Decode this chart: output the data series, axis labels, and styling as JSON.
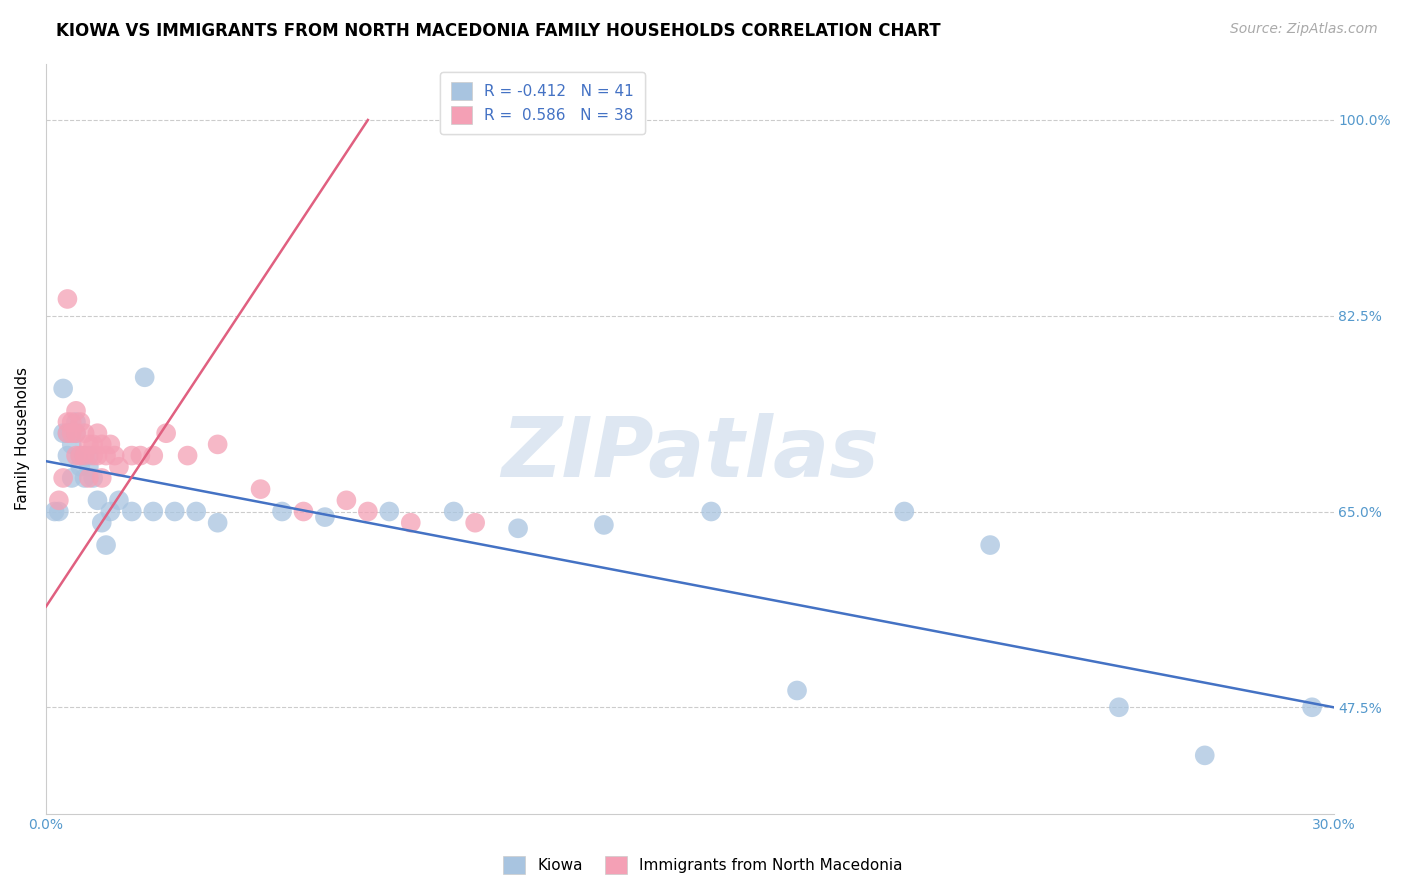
{
  "title": "KIOWA VS IMMIGRANTS FROM NORTH MACEDONIA FAMILY HOUSEHOLDS CORRELATION CHART",
  "source": "Source: ZipAtlas.com",
  "ylabel": "Family Households",
  "xlim": [
    0.0,
    0.3
  ],
  "ylim": [
    0.38,
    1.05
  ],
  "xtick_positions": [
    0.0,
    0.05,
    0.1,
    0.15,
    0.2,
    0.25,
    0.3
  ],
  "xticklabels": [
    "0.0%",
    "",
    "",
    "",
    "",
    "",
    "30.0%"
  ],
  "ytick_positions": [
    0.475,
    0.65,
    0.825,
    1.0
  ],
  "ytick_labels": [
    "47.5%",
    "65.0%",
    "82.5%",
    "100.0%"
  ],
  "blue_R": "-0.412",
  "blue_N": 41,
  "pink_R": "0.586",
  "pink_N": 38,
  "blue_color": "#a8c4e0",
  "pink_color": "#f4a0b5",
  "blue_line_color": "#4472c4",
  "pink_line_color": "#e06080",
  "watermark_text": "ZIPatlas",
  "legend_label_blue": "Kiowa",
  "legend_label_pink": "Immigrants from North Macedonia",
  "blue_scatter_x": [
    0.002,
    0.003,
    0.004,
    0.004,
    0.005,
    0.005,
    0.006,
    0.006,
    0.007,
    0.007,
    0.008,
    0.008,
    0.009,
    0.009,
    0.01,
    0.01,
    0.011,
    0.012,
    0.013,
    0.014,
    0.015,
    0.017,
    0.02,
    0.023,
    0.025,
    0.03,
    0.035,
    0.04,
    0.055,
    0.065,
    0.08,
    0.095,
    0.11,
    0.13,
    0.155,
    0.175,
    0.2,
    0.22,
    0.25,
    0.27,
    0.295
  ],
  "blue_scatter_y": [
    0.65,
    0.65,
    0.72,
    0.76,
    0.72,
    0.7,
    0.71,
    0.68,
    0.72,
    0.73,
    0.7,
    0.69,
    0.7,
    0.68,
    0.7,
    0.69,
    0.68,
    0.66,
    0.64,
    0.62,
    0.65,
    0.66,
    0.65,
    0.77,
    0.65,
    0.65,
    0.65,
    0.64,
    0.65,
    0.645,
    0.65,
    0.65,
    0.635,
    0.638,
    0.65,
    0.49,
    0.65,
    0.62,
    0.475,
    0.432,
    0.475
  ],
  "pink_scatter_x": [
    0.003,
    0.004,
    0.005,
    0.005,
    0.006,
    0.006,
    0.007,
    0.007,
    0.007,
    0.008,
    0.008,
    0.009,
    0.009,
    0.01,
    0.01,
    0.011,
    0.011,
    0.012,
    0.012,
    0.013,
    0.013,
    0.014,
    0.015,
    0.016,
    0.017,
    0.02,
    0.022,
    0.025,
    0.028,
    0.033,
    0.04,
    0.05,
    0.06,
    0.07,
    0.075,
    0.085,
    0.1,
    0.005
  ],
  "pink_scatter_y": [
    0.66,
    0.68,
    0.73,
    0.72,
    0.73,
    0.72,
    0.74,
    0.72,
    0.7,
    0.73,
    0.7,
    0.72,
    0.7,
    0.71,
    0.68,
    0.71,
    0.7,
    0.7,
    0.72,
    0.71,
    0.68,
    0.7,
    0.71,
    0.7,
    0.69,
    0.7,
    0.7,
    0.7,
    0.72,
    0.7,
    0.71,
    0.67,
    0.65,
    0.66,
    0.65,
    0.64,
    0.64,
    0.84
  ],
  "blue_line_x0": 0.0,
  "blue_line_x1": 0.3,
  "blue_line_y0": 0.695,
  "blue_line_y1": 0.475,
  "pink_line_x0": 0.0,
  "pink_line_x1": 0.075,
  "pink_line_y0": 0.565,
  "pink_line_y1": 1.0,
  "title_fontsize": 12,
  "source_fontsize": 10,
  "ylabel_fontsize": 11,
  "tick_fontsize": 10,
  "legend_fontsize": 11,
  "watermark_fontsize": 60
}
